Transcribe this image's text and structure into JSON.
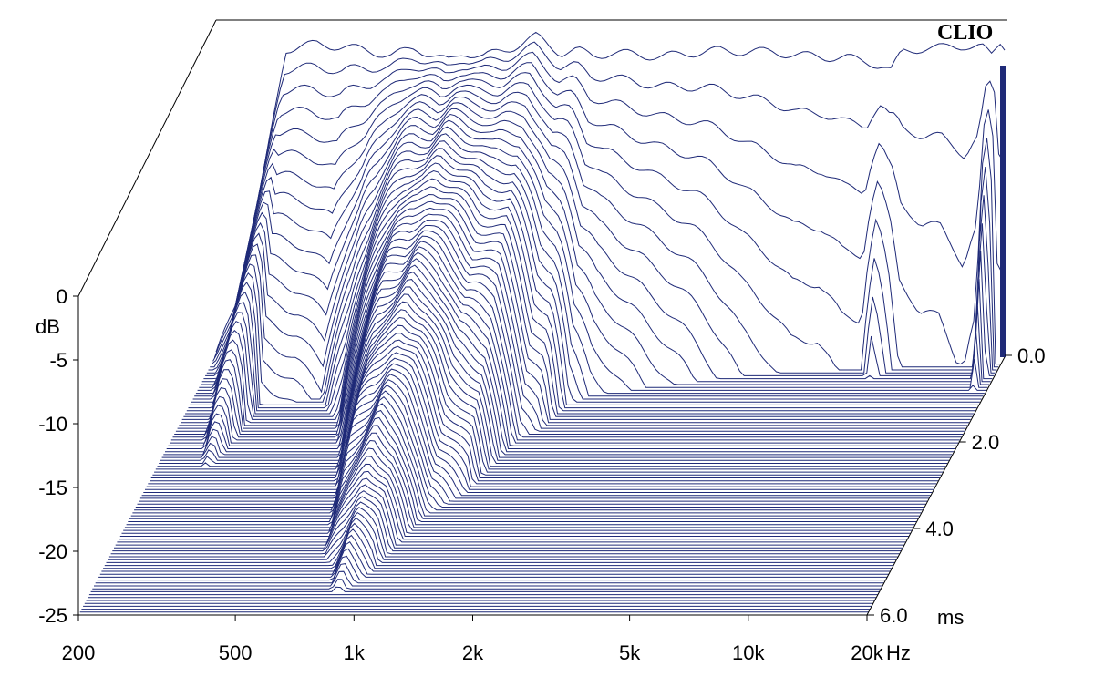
{
  "chart_data": {
    "type": "area",
    "brand": "CLIO",
    "db_axis": {
      "label": "dB",
      "ticks": [
        "0",
        "-5",
        "-10",
        "-15",
        "-20",
        "-25"
      ],
      "values": [
        0,
        -5,
        -10,
        -15,
        -20,
        -25
      ],
      "range": [
        -25,
        0
      ]
    },
    "freq_axis": {
      "unit": "Hz",
      "scale": "log",
      "ticks": [
        "200",
        "500",
        "1k",
        "2k",
        "5k",
        "10k",
        "20k"
      ],
      "values": [
        200,
        500,
        1000,
        2000,
        5000,
        10000,
        20000
      ],
      "range": [
        200,
        20000
      ]
    },
    "time_axis": {
      "unit": "ms",
      "ticks": [
        "0.0",
        "2.0",
        "4.0",
        "6.0"
      ],
      "values": [
        0,
        2,
        4,
        6
      ],
      "range": [
        0,
        6
      ]
    },
    "first_slice_response": {
      "freq": [
        200,
        230,
        260,
        300,
        360,
        420,
        500,
        560,
        640,
        700,
        780,
        850,
        950,
        1100,
        1300,
        1500,
        1650,
        1800,
        2000,
        2300,
        2700,
        3200,
        3800,
        4500,
        5200,
        6000,
        7000,
        8000,
        9000,
        9800,
        10300,
        11000,
        12500,
        14000,
        16000,
        17500,
        18500,
        19500,
        20000
      ],
      "db": [
        -25,
        -20,
        -12,
        -1.0,
        -0.6,
        -0.8,
        -1.2,
        -1.5,
        -0.9,
        -1.4,
        -2.0,
        -1.2,
        -1.6,
        -1.0,
        0.0,
        -1.3,
        -1.1,
        -1.5,
        -1.3,
        -1.4,
        -1.6,
        -1.3,
        -1.1,
        -1.2,
        -1.2,
        -1.5,
        -1.6,
        -1.7,
        -2.0,
        -2.3,
        -2.7,
        -1.2,
        -0.9,
        -0.9,
        -0.7,
        -0.8,
        -1.6,
        -0.5,
        -0.8
      ]
    },
    "decay_ms": [
      5.8,
      5.5,
      5.0,
      1.2,
      1.1,
      1.0,
      1.6,
      2.4,
      3.6,
      4.8,
      5.5,
      5.9,
      5.5,
      3.8,
      3.2,
      2.0,
      1.8,
      1.2,
      1.0,
      0.9,
      0.8,
      0.7,
      0.6,
      0.5,
      0.45,
      0.4,
      0.4,
      0.35,
      0.35,
      0.6,
      0.5,
      0.3,
      0.25,
      0.25,
      0.2,
      0.25,
      0.9,
      0.2,
      0.2
    ],
    "grid": false,
    "line_color": "#1f2a78",
    "fill_color": "#ffffff"
  }
}
